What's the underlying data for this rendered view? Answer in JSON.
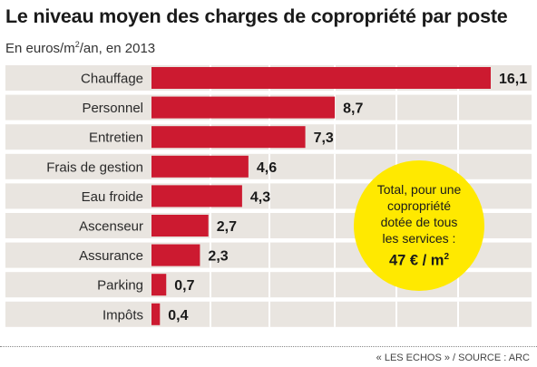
{
  "chart_data": {
    "type": "bar",
    "orientation": "horizontal",
    "title": "Le niveau moyen des charges de copropriété par poste",
    "subtitle_parts": [
      "En euros/m",
      "2",
      "/an, en 2013"
    ],
    "categories": [
      "Chauffage",
      "Personnel",
      "Entretien",
      "Frais de gestion",
      "Eau froide",
      "Ascenseur",
      "Assurance",
      "Parking",
      "Impôts"
    ],
    "values": [
      16.1,
      8.7,
      7.3,
      4.6,
      4.3,
      2.7,
      2.3,
      0.7,
      0.4
    ],
    "value_labels": [
      "16,1",
      "8,7",
      "7,3",
      "4,6",
      "4,3",
      "2,7",
      "2,3",
      "0,7",
      "0,4"
    ],
    "xlim": [
      0,
      16.1
    ],
    "grid": "vertical",
    "legend": "none",
    "colors": {
      "bar": "#cc1a30",
      "row_background": "#e9e5e0",
      "grid": "#ffffff"
    }
  },
  "callout": {
    "text": "Total, pour une\ncopropriété\ndotée de tous\nles services :",
    "total_parts": [
      "47 € / m",
      "2"
    ],
    "color": "#ffe900"
  },
  "source": "« LES ECHOS » / SOURCE : ARC"
}
